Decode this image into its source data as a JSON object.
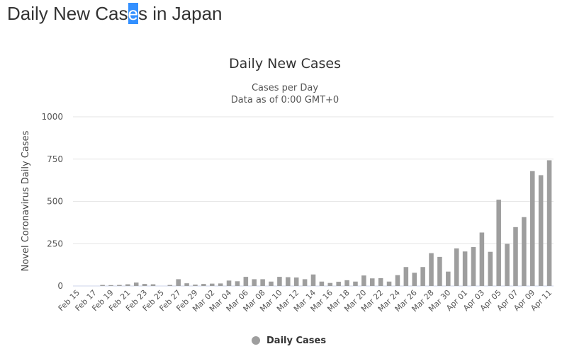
{
  "heading": {
    "before": "Daily New Cas",
    "selected": "e",
    "after": "s in Japan"
  },
  "colors": {
    "bar": "#9e9e9e",
    "grid": "#e6e6e6",
    "selection": "#3390ff"
  },
  "chart_data": {
    "type": "bar",
    "title": "Daily New Cases",
    "subtitle_lines": [
      "Cases per Day",
      "Data as of 0:00 GMT+0"
    ],
    "ylabel": "Novel Coronavirus Daily Cases",
    "xlabel": "",
    "ylim": [
      0,
      1000
    ],
    "yticks": [
      0,
      250,
      500,
      750,
      1000
    ],
    "grid": true,
    "legend_position": "bottom-center",
    "categories": [
      "Feb 15",
      "Feb 16",
      "Feb 17",
      "Feb 18",
      "Feb 19",
      "Feb 20",
      "Feb 21",
      "Feb 22",
      "Feb 23",
      "Feb 24",
      "Feb 25",
      "Feb 26",
      "Feb 27",
      "Feb 28",
      "Feb 29",
      "Mar 01",
      "Mar 02",
      "Mar 03",
      "Mar 04",
      "Mar 05",
      "Mar 06",
      "Mar 07",
      "Mar 08",
      "Mar 09",
      "Mar 10",
      "Mar 11",
      "Mar 12",
      "Mar 13",
      "Mar 14",
      "Mar 15",
      "Mar 16",
      "Mar 17",
      "Mar 18",
      "Mar 19",
      "Mar 20",
      "Mar 21",
      "Mar 22",
      "Mar 23",
      "Mar 24",
      "Mar 25",
      "Mar 26",
      "Mar 27",
      "Mar 28",
      "Mar 29",
      "Mar 30",
      "Mar 31",
      "Apr 01",
      "Apr 02",
      "Apr 03",
      "Apr 04",
      "Apr 05",
      "Apr 06",
      "Apr 07",
      "Apr 08",
      "Apr 09",
      "Apr 10",
      "Apr 11"
    ],
    "tick_labels": [
      "Feb 15",
      "Feb 17",
      "Feb 19",
      "Feb 21",
      "Feb 23",
      "Feb 25",
      "Feb 27",
      "Feb 29",
      "Mar 02",
      "Mar 04",
      "Mar 06",
      "Mar 08",
      "Mar 10",
      "Mar 12",
      "Mar 14",
      "Mar 16",
      "Mar 18",
      "Mar 20",
      "Mar 22",
      "Mar 24",
      "Mar 26",
      "Mar 28",
      "Mar 30",
      "Apr 01",
      "Apr 03",
      "Apr 05",
      "Apr 07",
      "Apr 09",
      "Apr 11"
    ],
    "series": [
      {
        "name": "Daily Cases",
        "values": [
          0,
          0,
          0,
          6,
          5,
          6,
          10,
          20,
          12,
          10,
          0,
          6,
          40,
          16,
          8,
          12,
          14,
          15,
          32,
          28,
          54,
          40,
          40,
          26,
          54,
          52,
          50,
          40,
          68,
          26,
          18,
          25,
          34,
          26,
          62,
          45,
          46,
          26,
          64,
          112,
          78,
          112,
          194,
          172,
          85,
          222,
          204,
          230,
          316,
          202,
          510,
          249,
          348,
          407,
          679,
          655,
          743
        ]
      }
    ]
  }
}
